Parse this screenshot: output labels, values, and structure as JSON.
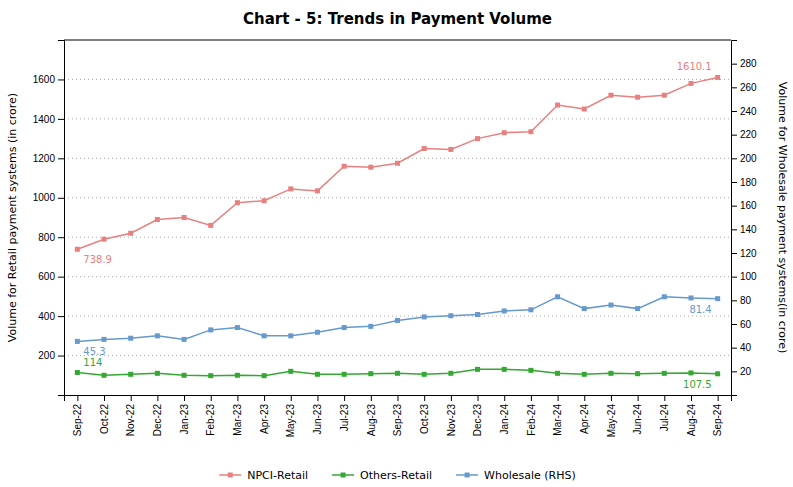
{
  "chart_data": {
    "type": "line",
    "title": "Chart - 5: Trends in Payment Volume",
    "y_label": "Volume for Retail payment systems (in crore)",
    "y2_label": "Volume for Wholesale payment systems(in crore)",
    "categories": [
      "Sep-22",
      "Oct-22",
      "Nov-22",
      "Dec-22",
      "Jan-23",
      "Feb-23",
      "Mar-23",
      "Apr-23",
      "May-23",
      "Jun-23",
      "Jul-23",
      "Aug-23",
      "Sep-23",
      "Oct-23",
      "Nov-23",
      "Dec-23",
      "Jan-24",
      "Feb-24",
      "Mar-24",
      "Apr-24",
      "May-24",
      "Jun-24",
      "Jul-24",
      "Aug-24",
      "Sep-24"
    ],
    "series": [
      {
        "name": "NPCI-Retail",
        "color": "#e88080",
        "marker": "square",
        "values": [
          738.9,
          790,
          820,
          890,
          900,
          860,
          975,
          985,
          1045,
          1035,
          1160,
          1155,
          1175,
          1250,
          1245,
          1300,
          1330,
          1335,
          1470,
          1450,
          1520,
          1510,
          1520,
          1580,
          1610.1
        ],
        "annotations": [
          {
            "text": "738.9",
            "x": "Sep-22",
            "y": 738.9
          },
          {
            "text": "1610.1",
            "x": "Sep-24",
            "y": 1610.1
          }
        ]
      },
      {
        "name": "Others-Retail",
        "color": "#33a833",
        "marker": "square",
        "values": [
          114,
          100,
          105,
          110,
          100,
          98,
          100,
          98,
          120,
          105,
          105,
          108,
          110,
          105,
          110,
          130,
          130,
          125,
          110,
          105,
          110,
          108,
          110,
          112,
          107.5
        ],
        "annotations": [
          {
            "text": "114",
            "x": "Sep-22",
            "y": 114
          },
          {
            "text": "107.5",
            "x": "Sep-24",
            "y": 107.5
          }
        ]
      },
      {
        "name": "Wholesale (RHS)",
        "color": "#6699cc",
        "marker": "square",
        "axis": "y2",
        "values": [
          45.3,
          47,
          48,
          50,
          47,
          55,
          57,
          50,
          50,
          53,
          57,
          58,
          63,
          66,
          67,
          68,
          71,
          72,
          83,
          73,
          76,
          73,
          83,
          82,
          81.4
        ],
        "annotations": [
          {
            "text": "45.3",
            "x": "Sep-22",
            "y": 45.3
          },
          {
            "text": "81.4",
            "x": "Sep-24",
            "y": 81.4
          }
        ]
      }
    ],
    "ylim": [
      0,
      1800
    ],
    "yticks": [
      200,
      400,
      600,
      800,
      1000,
      1200,
      1400,
      1600
    ],
    "y2lim": [
      0,
      300
    ],
    "y2ticks": [
      20,
      40,
      60,
      80,
      100,
      120,
      140,
      160,
      180,
      200,
      220,
      240,
      260,
      280
    ],
    "grid": true,
    "legend": "bottom"
  }
}
